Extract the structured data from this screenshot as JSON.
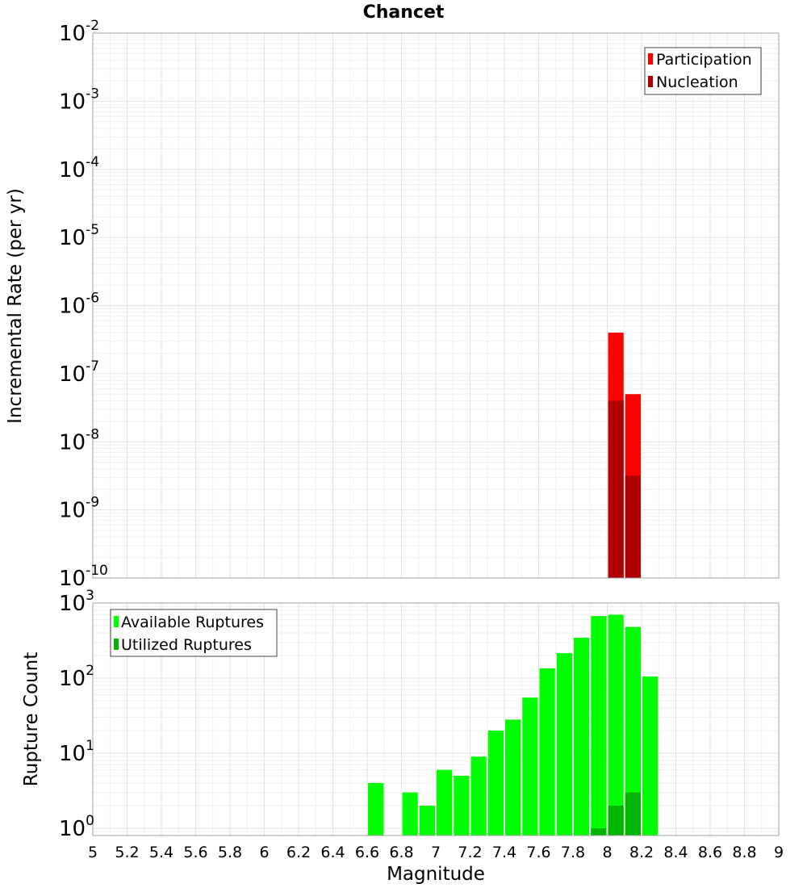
{
  "chart_data": [
    {
      "type": "bar",
      "title": "Chancet",
      "xlabel": "",
      "ylabel": "Incremental Rate (per yr)",
      "yscale": "log",
      "ylim": [
        1e-10,
        0.01
      ],
      "xlim": [
        5,
        9
      ],
      "bar_width": 0.1,
      "grid": true,
      "legend_placement": "top-right",
      "y_ticks": [
        {
          "base": "10",
          "exp": "-10",
          "value": 1e-10
        },
        {
          "base": "10",
          "exp": "-9",
          "value": 1e-09
        },
        {
          "base": "10",
          "exp": "-8",
          "value": 1e-08
        },
        {
          "base": "10",
          "exp": "-7",
          "value": 1e-07
        },
        {
          "base": "10",
          "exp": "-6",
          "value": 1e-06
        },
        {
          "base": "10",
          "exp": "-5",
          "value": 1e-05
        },
        {
          "base": "10",
          "exp": "-4",
          "value": 0.0001
        },
        {
          "base": "10",
          "exp": "-3",
          "value": 0.001
        },
        {
          "base": "10",
          "exp": "-2",
          "value": 0.01
        }
      ],
      "series": [
        {
          "name": "Participation",
          "color": "#ff0000",
          "x": [
            8.05,
            8.15
          ],
          "values": [
            4e-07,
            5e-08
          ]
        },
        {
          "name": "Nucleation",
          "color": "#b00000",
          "x": [
            8.05,
            8.15
          ],
          "values": [
            4e-08,
            3.2e-09
          ]
        }
      ]
    },
    {
      "type": "bar",
      "title": "",
      "xlabel": "Magnitude",
      "ylabel": "Rupture Count",
      "yscale": "log",
      "ylim": [
        0.8,
        1000
      ],
      "xlim": [
        5,
        9
      ],
      "bar_width": 0.1,
      "grid": true,
      "legend_placement": "top-left",
      "x_ticks": [
        "5",
        "5.2",
        "5.4",
        "5.6",
        "5.8",
        "6",
        "6.2",
        "6.4",
        "6.6",
        "6.8",
        "7",
        "7.2",
        "7.4",
        "7.6",
        "7.8",
        "8",
        "8.2",
        "8.4",
        "8.6",
        "8.8",
        "9"
      ],
      "y_ticks": [
        {
          "base": "10",
          "exp": "0",
          "value": 1
        },
        {
          "base": "10",
          "exp": "1",
          "value": 10
        },
        {
          "base": "10",
          "exp": "2",
          "value": 100
        },
        {
          "base": "10",
          "exp": "3",
          "value": 1000
        }
      ],
      "series": [
        {
          "name": "Available Ruptures",
          "color": "#00ff00",
          "x": [
            6.65,
            6.85,
            6.95,
            7.05,
            7.15,
            7.25,
            7.35,
            7.45,
            7.55,
            7.65,
            7.75,
            7.85,
            7.95,
            8.05,
            8.15,
            8.25
          ],
          "values": [
            4,
            3,
            2,
            6,
            5,
            9,
            20,
            28,
            55,
            135,
            215,
            345,
            670,
            700,
            480,
            105
          ]
        },
        {
          "name": "Utilized Ruptures",
          "color": "#00b400",
          "x": [
            7.95,
            8.05,
            8.15
          ],
          "values": [
            1,
            2,
            3
          ]
        }
      ]
    }
  ]
}
